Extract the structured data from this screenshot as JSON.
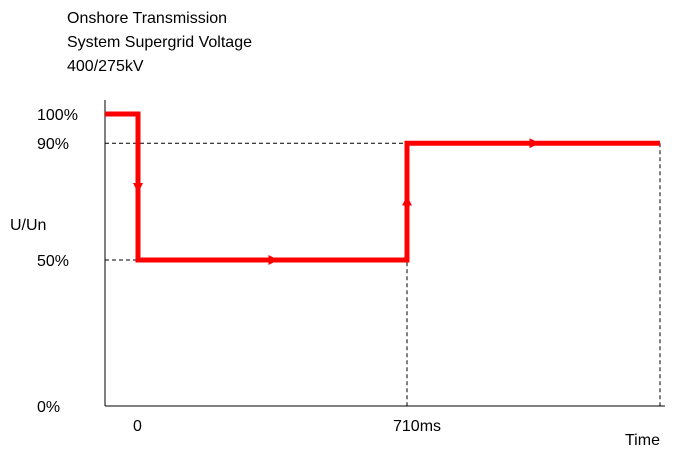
{
  "title_lines": [
    "Onshore Transmission",
    "System Supergrid Voltage",
    "400/275kV"
  ],
  "chart_data": {
    "type": "line",
    "title": "Onshore Transmission System Supergrid Voltage 400/275kV",
    "xlabel": "Time",
    "ylabel": "U/Un",
    "y_ticks": [
      {
        "value": 100,
        "label": "100%"
      },
      {
        "value": 90,
        "label": "90%"
      },
      {
        "value": 50,
        "label": "50%"
      },
      {
        "value": 0,
        "label": "0%"
      }
    ],
    "x_ticks": [
      {
        "value": 0,
        "label": "0"
      },
      {
        "value": 710,
        "label": "710ms"
      }
    ],
    "ylim": [
      0,
      100
    ],
    "grid": false,
    "series": [
      {
        "color": "#ff0000",
        "points": [
          {
            "x": -80,
            "y": 100
          },
          {
            "x": 0,
            "y": 100
          },
          {
            "x": 0,
            "y": 50
          },
          {
            "x": 710,
            "y": 50
          },
          {
            "x": 710,
            "y": 90
          },
          {
            "x": 2000,
            "y": 90
          }
        ]
      }
    ],
    "reference_lines": [
      {
        "axis": "y",
        "value": 90
      },
      {
        "axis": "y",
        "value": 50
      },
      {
        "axis": "x",
        "value": 710
      },
      {
        "axis": "x",
        "value": 2000
      }
    ]
  }
}
